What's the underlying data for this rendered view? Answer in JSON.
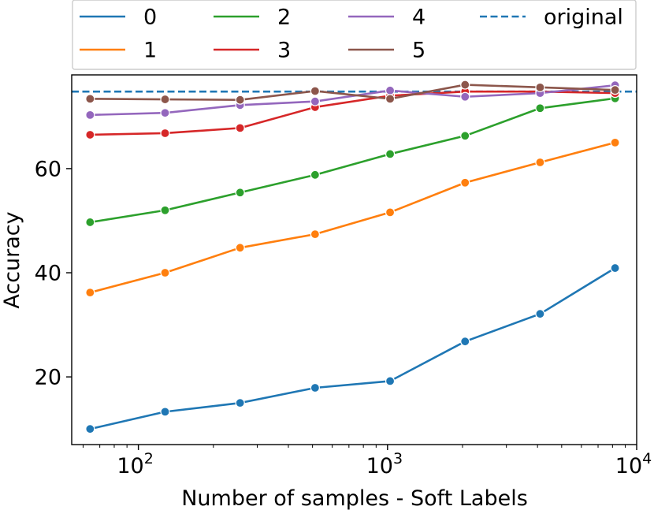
{
  "chart_data": {
    "type": "line",
    "title": "",
    "xlabel": "Number of samples - Soft Labels",
    "ylabel": "Accuracy",
    "xscale": "log",
    "xlim": [
      54,
      10000
    ],
    "ylim": [
      7,
      78
    ],
    "x": [
      64,
      128,
      256,
      512,
      1024,
      2048,
      4096,
      8192
    ],
    "xticks": [
      {
        "value": 100,
        "base": "10",
        "exp": "2"
      },
      {
        "value": 1000,
        "base": "10",
        "exp": "3"
      },
      {
        "value": 10000,
        "base": "10",
        "exp": "4"
      }
    ],
    "yticks": [
      20,
      40,
      60
    ],
    "ytick_labels": [
      "20",
      "40",
      "60"
    ],
    "series": [
      {
        "name": "0",
        "color": "#1f77b4",
        "values": [
          10.0,
          13.3,
          15.0,
          17.9,
          19.2,
          26.8,
          32.1,
          40.9
        ]
      },
      {
        "name": "1",
        "color": "#ff7f0e",
        "values": [
          36.2,
          40.0,
          44.8,
          47.4,
          51.6,
          57.3,
          61.2,
          65.0
        ]
      },
      {
        "name": "2",
        "color": "#2ca02c",
        "values": [
          49.7,
          52.0,
          55.4,
          58.8,
          62.8,
          66.3,
          71.6,
          73.5
        ]
      },
      {
        "name": "3",
        "color": "#d62728",
        "values": [
          66.5,
          66.8,
          67.8,
          71.8,
          74.0,
          74.8,
          74.8,
          74.5
        ]
      },
      {
        "name": "4",
        "color": "#9467bd",
        "values": [
          70.3,
          70.7,
          72.2,
          72.9,
          75.0,
          73.8,
          74.5,
          76.0
        ]
      },
      {
        "name": "5",
        "color": "#8c564b",
        "values": [
          73.4,
          73.3,
          73.2,
          74.9,
          73.4,
          76.1,
          75.6,
          75.1
        ]
      }
    ],
    "reference_line": {
      "name": "original",
      "color": "#1f77b4",
      "value": 74.8,
      "style": "dashed"
    },
    "legend": {
      "position": "top-outside",
      "columns": 4,
      "entries": [
        "0",
        "1",
        "2",
        "3",
        "4",
        "5",
        "original"
      ]
    },
    "grid": false
  }
}
